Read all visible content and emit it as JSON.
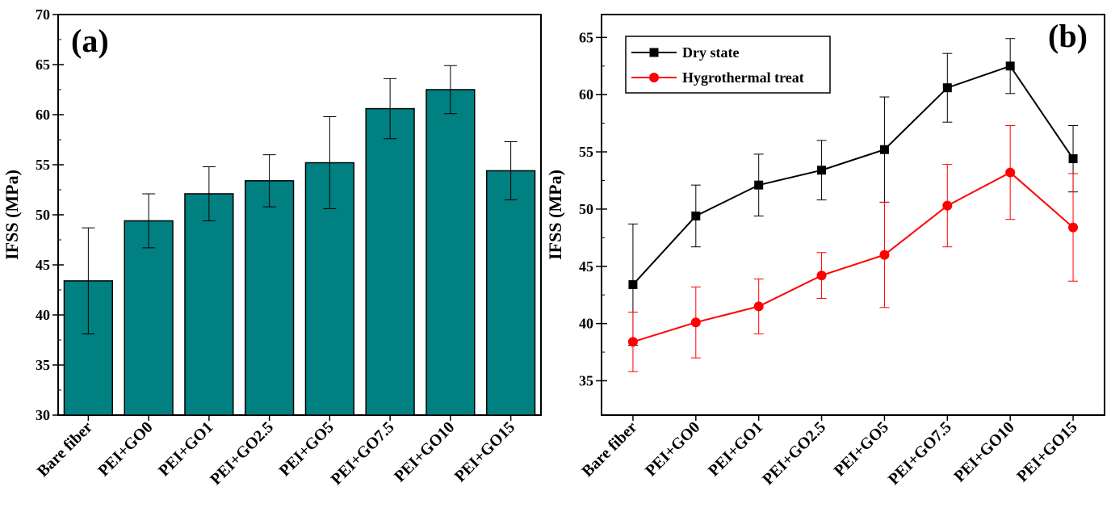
{
  "chart_data": [
    {
      "type": "bar",
      "panel_label": "(a)",
      "ylabel": "IFSS (MPa)",
      "xlabel": "",
      "ylim": [
        30,
        70
      ],
      "yticks": [
        30,
        35,
        40,
        45,
        50,
        55,
        60,
        65,
        70
      ],
      "categories": [
        "Bare fiber",
        "PEI+GO0",
        "PEI+GO1",
        "PEI+GO2.5",
        "PEI+GO5",
        "PEI+GO7.5",
        "PEI+GO10",
        "PEI+GO15"
      ],
      "values": [
        43.4,
        49.4,
        52.1,
        53.4,
        55.2,
        60.6,
        62.5,
        54.4
      ],
      "errors": [
        5.3,
        2.7,
        2.7,
        2.6,
        4.6,
        3.0,
        2.4,
        2.9
      ],
      "bar_color": "#008080",
      "grid": false
    },
    {
      "type": "line",
      "panel_label": "(b)",
      "ylabel": "IFSS (MPa)",
      "xlabel": "",
      "ylim": [
        32,
        67
      ],
      "yticks": [
        35,
        40,
        45,
        50,
        55,
        60,
        65
      ],
      "categories": [
        "Bare fiber",
        "PEI+GO0",
        "PEI+GO1",
        "PEI+GO2.5",
        "PEI+GO5",
        "PEI+GO7.5",
        "PEI+GO10",
        "PEI+GO15"
      ],
      "legend_position": "top-left",
      "grid": false,
      "series": [
        {
          "name": "Dry state",
          "color": "#000000",
          "marker": "square",
          "values": [
            43.4,
            49.4,
            52.1,
            53.4,
            55.2,
            60.6,
            62.5,
            54.4
          ],
          "errors": [
            5.3,
            2.7,
            2.7,
            2.6,
            4.6,
            3.0,
            2.4,
            2.9
          ]
        },
        {
          "name": "Hygrothermal treat",
          "color": "#ff0000",
          "marker": "circle",
          "values": [
            38.4,
            40.1,
            41.5,
            44.2,
            46.0,
            50.3,
            53.2,
            48.4
          ],
          "errors": [
            2.6,
            3.1,
            2.4,
            2.0,
            4.6,
            3.6,
            4.1,
            4.7
          ]
        }
      ]
    }
  ]
}
